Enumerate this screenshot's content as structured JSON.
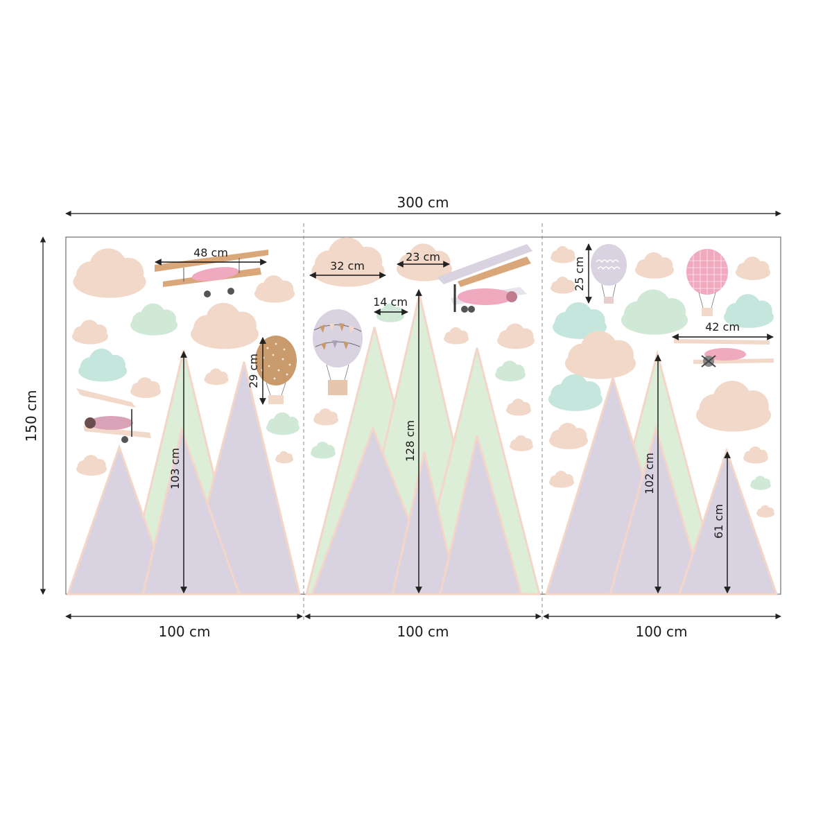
{
  "dimensions": {
    "total_width": "300 cm",
    "total_height": "150 cm",
    "panel_widths": [
      "100 cm",
      "100 cm",
      "100 cm"
    ]
  },
  "panels": [
    {
      "measurements": {
        "plane_width": "48 cm",
        "balloon_height": "29 cm",
        "mountain_height": "103 cm"
      }
    },
    {
      "measurements": {
        "cloud_width": "32 cm",
        "small_cloud_width": "14 cm",
        "cloud2_width": "23 cm",
        "mountain_height": "128 cm"
      }
    },
    {
      "measurements": {
        "balloon_height": "25 cm",
        "plane_width": "42 cm",
        "mountain_height": "102 cm",
        "small_mountain_height": "61 cm"
      }
    }
  ],
  "colors": {
    "cloud_peach": "#f2d8c9",
    "cloud_mint": "#cfe9d6",
    "cloud_teal": "#c5e6dd",
    "mountain_purple": "#d8d2e1",
    "mountain_green": "#dcedd8",
    "mountain_edge": "#f3d6c8",
    "panel_border": "#6d6d6d",
    "dim_line": "#222222"
  }
}
